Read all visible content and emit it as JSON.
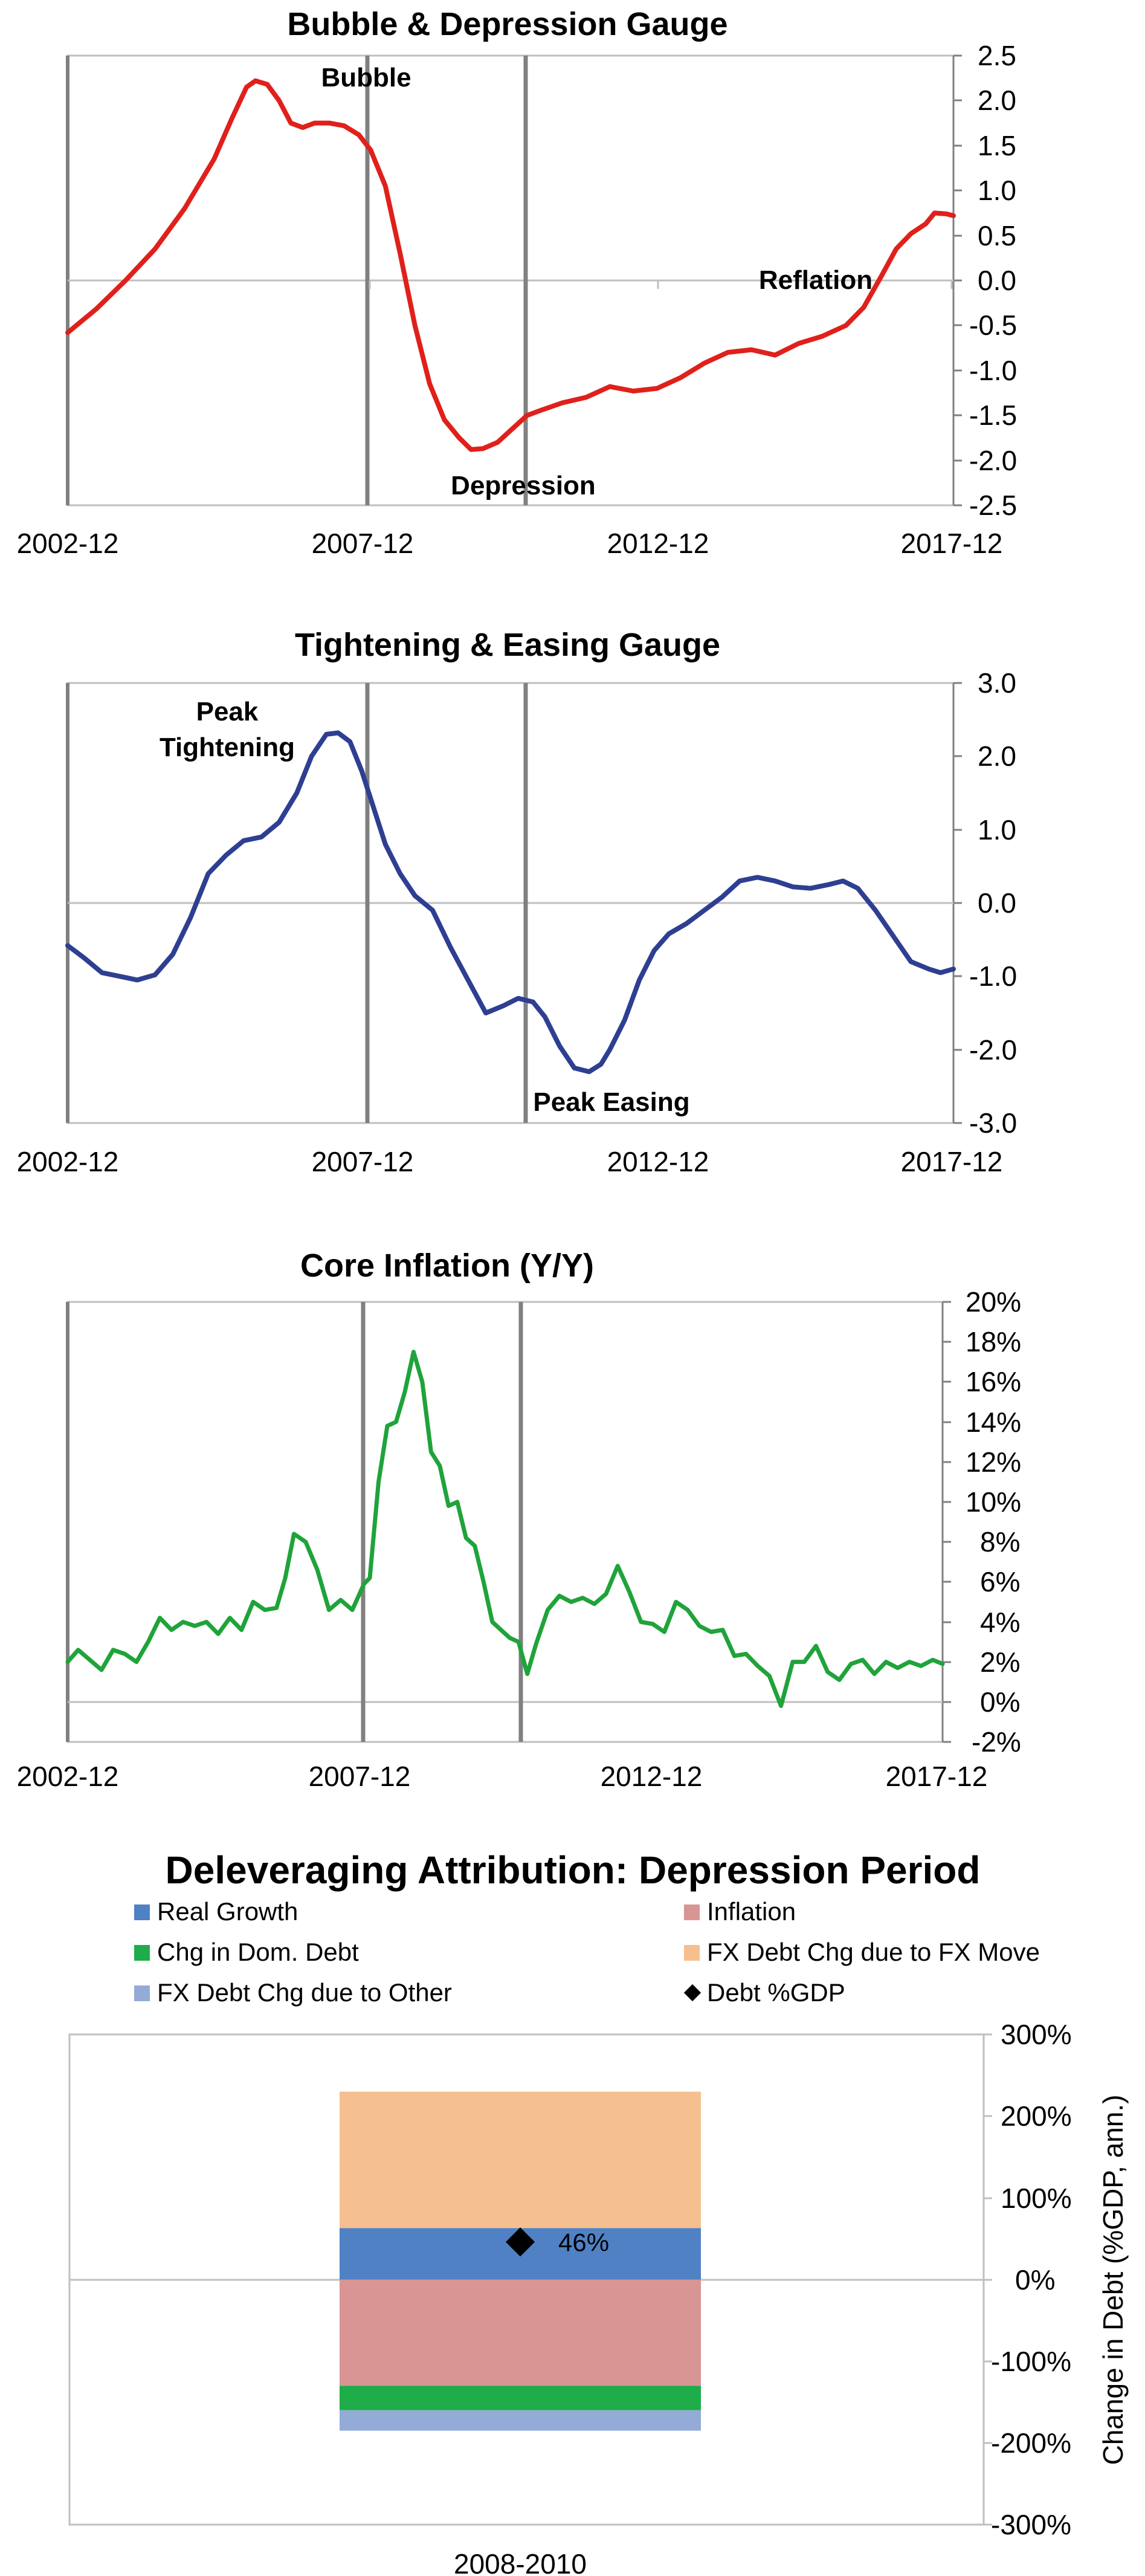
{
  "chart_data": [
    {
      "type": "line",
      "title": "Bubble & Depression Gauge",
      "x_ticks": [
        "2002-12",
        "2007-12",
        "2012-12",
        "2017-12"
      ],
      "y_ticks": [
        "2.5",
        "2.0",
        "1.5",
        "1.0",
        "0.5",
        "0.0",
        "-0.5",
        "-1.0",
        "-1.5",
        "-2.0",
        "-2.5"
      ],
      "ylim": [
        -2.5,
        2.5
      ],
      "xlim": [
        2002.92,
        2017.92
      ],
      "grid": false,
      "zero_line": true,
      "vertical_markers": [
        2008.0,
        2010.67
      ],
      "annotations": [
        "Bubble",
        "Depression",
        "Reflation"
      ],
      "color": "#E0201B",
      "series": [
        {
          "x": [
            2002.92,
            2003.4,
            2003.9,
            2004.4,
            2004.9,
            2005.4,
            2005.7,
            2005.95,
            2006.1,
            2006.3,
            2006.5,
            2006.7,
            2006.9,
            2007.1,
            2007.35,
            2007.6,
            2007.85,
            2008.05,
            2008.3,
            2008.55,
            2008.8,
            2009.05,
            2009.3,
            2009.55,
            2009.75,
            2009.95,
            2010.2,
            2010.45,
            2010.7,
            2010.95,
            2011.3,
            2011.7,
            2012.1,
            2012.5,
            2012.9,
            2013.3,
            2013.7,
            2014.1,
            2014.5,
            2014.9,
            2015.3,
            2015.7,
            2016.1,
            2016.4,
            2016.7,
            2016.95,
            2017.2,
            2017.45,
            2017.6,
            2017.8,
            2017.92
          ],
          "y": [
            -0.58,
            -0.32,
            0.0,
            0.35,
            0.8,
            1.35,
            1.8,
            2.15,
            2.22,
            2.18,
            2.0,
            1.75,
            1.7,
            1.75,
            1.75,
            1.72,
            1.62,
            1.45,
            1.05,
            0.3,
            -0.5,
            -1.15,
            -1.55,
            -1.75,
            -1.88,
            -1.87,
            -1.8,
            -1.65,
            -1.5,
            -1.44,
            -1.36,
            -1.3,
            -1.18,
            -1.23,
            -1.2,
            -1.08,
            -0.92,
            -0.8,
            -0.77,
            -0.83,
            -0.7,
            -0.62,
            -0.5,
            -0.3,
            0.05,
            0.35,
            0.52,
            0.63,
            0.75,
            0.74,
            0.72
          ]
        }
      ]
    },
    {
      "type": "line",
      "title": "Tightening & Easing Gauge",
      "x_ticks": [
        "2002-12",
        "2007-12",
        "2012-12",
        "2017-12"
      ],
      "y_ticks": [
        "3.0",
        "2.0",
        "1.0",
        "0.0",
        "-1.0",
        "-2.0",
        "-3.0"
      ],
      "ylim": [
        -3.0,
        3.0
      ],
      "xlim": [
        2002.92,
        2017.92
      ],
      "grid": false,
      "zero_line": true,
      "vertical_markers": [
        2008.0,
        2010.67
      ],
      "annotations": [
        "Peak Tightening",
        "Peak Easing"
      ],
      "color": "#2E3F92",
      "series": [
        {
          "x": [
            2002.92,
            2003.2,
            2003.5,
            2003.8,
            2004.1,
            2004.4,
            2004.7,
            2005.0,
            2005.3,
            2005.6,
            2005.9,
            2006.2,
            2006.5,
            2006.8,
            2007.05,
            2007.3,
            2007.5,
            2007.7,
            2007.9,
            2008.1,
            2008.3,
            2008.55,
            2008.8,
            2009.1,
            2009.4,
            2009.7,
            2010.0,
            2010.3,
            2010.55,
            2010.8,
            2011.0,
            2011.25,
            2011.5,
            2011.75,
            2011.95,
            2012.1,
            2012.35,
            2012.6,
            2012.85,
            2013.1,
            2013.4,
            2013.7,
            2014.0,
            2014.3,
            2014.6,
            2014.9,
            2015.2,
            2015.5,
            2015.8,
            2016.05,
            2016.3,
            2016.6,
            2016.9,
            2017.2,
            2017.5,
            2017.7,
            2017.92
          ],
          "y": [
            -0.58,
            -0.75,
            -0.95,
            -1.0,
            -1.05,
            -0.98,
            -0.7,
            -0.2,
            0.4,
            0.65,
            0.85,
            0.9,
            1.1,
            1.5,
            2.0,
            2.3,
            2.32,
            2.2,
            1.8,
            1.3,
            0.8,
            0.4,
            0.1,
            -0.1,
            -0.6,
            -1.05,
            -1.5,
            -1.4,
            -1.3,
            -1.35,
            -1.55,
            -1.95,
            -2.25,
            -2.3,
            -2.2,
            -2.0,
            -1.6,
            -1.05,
            -0.65,
            -0.42,
            -0.28,
            -0.1,
            0.08,
            0.3,
            0.35,
            0.3,
            0.22,
            0.2,
            0.25,
            0.3,
            0.2,
            -0.1,
            -0.45,
            -0.8,
            -0.9,
            -0.95,
            -0.9
          ]
        }
      ]
    },
    {
      "type": "line",
      "title": "Core Inflation (Y/Y)",
      "x_ticks": [
        "2002-12",
        "2007-12",
        "2012-12",
        "2017-12"
      ],
      "y_ticks": [
        "20%",
        "18%",
        "16%",
        "14%",
        "12%",
        "10%",
        "8%",
        "6%",
        "4%",
        "2%",
        "0%",
        "-2%"
      ],
      "ylim": [
        -2,
        20
      ],
      "xlim": [
        2002.92,
        2017.92
      ],
      "grid": false,
      "zero_line": true,
      "vertical_markers": [
        2008.0,
        2010.67
      ],
      "color": "#1FA33A",
      "series": [
        {
          "x": [
            2002.92,
            2003.1,
            2003.3,
            2003.5,
            2003.7,
            2003.9,
            2004.1,
            2004.3,
            2004.5,
            2004.7,
            2004.9,
            2005.1,
            2005.3,
            2005.5,
            2005.7,
            2005.9,
            2006.1,
            2006.3,
            2006.5,
            2006.65,
            2006.8,
            2007.0,
            2007.2,
            2007.4,
            2007.6,
            2007.8,
            2008.0,
            2008.1,
            2008.25,
            2008.4,
            2008.55,
            2008.7,
            2008.85,
            2009.0,
            2009.15,
            2009.3,
            2009.45,
            2009.6,
            2009.75,
            2009.9,
            2010.05,
            2010.2,
            2010.35,
            2010.5,
            2010.65,
            2010.8,
            2010.95,
            2011.15,
            2011.35,
            2011.55,
            2011.75,
            2011.95,
            2012.15,
            2012.35,
            2012.55,
            2012.75,
            2012.95,
            2013.15,
            2013.35,
            2013.55,
            2013.75,
            2013.95,
            2014.15,
            2014.35,
            2014.55,
            2014.75,
            2014.95,
            2015.15,
            2015.35,
            2015.55,
            2015.75,
            2015.95,
            2016.15,
            2016.35,
            2016.55,
            2016.75,
            2016.95,
            2017.15,
            2017.35,
            2017.55,
            2017.75,
            2017.92
          ],
          "y": [
            2.0,
            2.6,
            2.1,
            1.6,
            2.6,
            2.4,
            2.0,
            3.0,
            4.2,
            3.6,
            4.0,
            3.8,
            4.0,
            3.4,
            4.2,
            3.6,
            5.0,
            4.6,
            4.7,
            6.2,
            8.4,
            8.0,
            6.6,
            4.6,
            5.1,
            4.6,
            5.9,
            6.2,
            11.0,
            13.8,
            14.0,
            15.5,
            17.5,
            16.0,
            12.5,
            11.8,
            9.8,
            10.0,
            8.2,
            7.8,
            6.0,
            4.0,
            3.6,
            3.2,
            3.0,
            1.4,
            2.9,
            4.6,
            5.3,
            5.0,
            5.2,
            4.9,
            5.4,
            6.8,
            5.5,
            4.0,
            3.9,
            3.5,
            5.0,
            4.6,
            3.8,
            3.5,
            3.6,
            2.3,
            2.4,
            1.8,
            1.3,
            -0.2,
            2.0,
            2.0,
            2.8,
            1.5,
            1.1,
            1.9,
            2.1,
            1.4,
            2.0,
            1.7,
            2.0,
            1.8,
            2.1,
            1.9
          ]
        }
      ]
    },
    {
      "type": "bar",
      "stacked": true,
      "title": "Deleveraging Attribution: Depression Period",
      "categories": [
        "2008-2010"
      ],
      "ylabel": "Change in Debt (%GDP, ann.)",
      "y_ticks": [
        "300%",
        "200%",
        "100%",
        "0%",
        "-100%",
        "-200%",
        "-300%"
      ],
      "ylim": [
        -300,
        300
      ],
      "legend_position": "top",
      "series": [
        {
          "name": "Real Growth",
          "values": [
            63
          ],
          "color": "#4F81C4"
        },
        {
          "name": "Inflation",
          "values": [
            -130
          ],
          "color": "#D89594"
        },
        {
          "name": "Chg in Dom. Debt",
          "values": [
            -30
          ],
          "color": "#1FAD4A"
        },
        {
          "name": "FX Debt Chg due to FX Move",
          "values": [
            167
          ],
          "color": "#F5BF8F"
        },
        {
          "name": "FX Debt Chg due to Other",
          "values": [
            -25
          ],
          "color": "#93ABD6"
        },
        {
          "name": "Debt %GDP",
          "values": [
            46
          ],
          "marker": "diamond",
          "color": "#000000",
          "data_label": "46%"
        }
      ]
    }
  ]
}
